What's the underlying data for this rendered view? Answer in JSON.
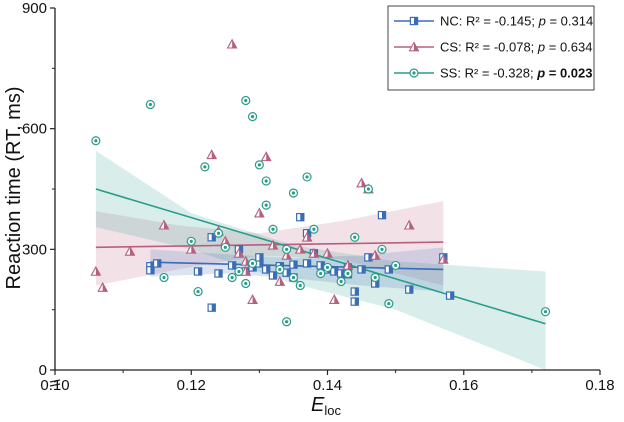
{
  "chart_data": {
    "type": "scatter",
    "xlabel_main": "E",
    "xlabel_sub": "loc",
    "ylabel": "Reaction time (RT, ms)",
    "xlim": [
      0.1,
      0.18
    ],
    "ylim": [
      0,
      900
    ],
    "x_ticks": [
      0.1,
      0.12,
      0.14,
      0.16,
      0.18
    ],
    "x_tick_labels": [
      "0.10",
      "0.12",
      "0.14",
      "0.16",
      "0.18"
    ],
    "y_ticks": [
      0,
      300,
      600,
      900
    ],
    "y_tick_labels": [
      "0",
      "300",
      "600",
      "900"
    ],
    "legend_position": "top-right",
    "series": [
      {
        "name": "NC",
        "legend": {
          "prefix": "NC: R² = -0.145; ",
          "p_label": "p",
          "p_eq": " = 0.314",
          "p_bold": false
        },
        "color": "#3b6cb7",
        "marker": "half-square",
        "fit": {
          "x": [
            0.114,
            0.157
          ],
          "y": [
            268,
            250
          ]
        },
        "ci": {
          "x": [
            0.114,
            0.125,
            0.135,
            0.145,
            0.157
          ],
          "upper": [
            300,
            288,
            278,
            285,
            305
          ],
          "lower": [
            232,
            240,
            228,
            210,
            195
          ]
        },
        "points": [
          [
            0.114,
            258
          ],
          [
            0.114,
            248
          ],
          [
            0.115,
            265
          ],
          [
            0.121,
            245
          ],
          [
            0.123,
            330
          ],
          [
            0.123,
            155
          ],
          [
            0.124,
            240
          ],
          [
            0.126,
            260
          ],
          [
            0.127,
            300
          ],
          [
            0.128,
            245
          ],
          [
            0.129,
            255
          ],
          [
            0.13,
            265
          ],
          [
            0.13,
            280
          ],
          [
            0.131,
            250
          ],
          [
            0.132,
            235
          ],
          [
            0.133,
            258
          ],
          [
            0.134,
            242
          ],
          [
            0.135,
            262
          ],
          [
            0.135,
            230
          ],
          [
            0.136,
            380
          ],
          [
            0.137,
            340
          ],
          [
            0.137,
            265
          ],
          [
            0.138,
            290
          ],
          [
            0.139,
            260
          ],
          [
            0.14,
            250
          ],
          [
            0.141,
            245
          ],
          [
            0.142,
            240
          ],
          [
            0.143,
            238
          ],
          [
            0.143,
            255
          ],
          [
            0.144,
            195
          ],
          [
            0.144,
            170
          ],
          [
            0.145,
            250
          ],
          [
            0.146,
            280
          ],
          [
            0.147,
            215
          ],
          [
            0.148,
            385
          ],
          [
            0.149,
            250
          ],
          [
            0.152,
            200
          ],
          [
            0.157,
            280
          ],
          [
            0.158,
            185
          ]
        ]
      },
      {
        "name": "CS",
        "legend": {
          "prefix": "CS: R² = -0.078; ",
          "p_label": "p",
          "p_eq": " = 0.634",
          "p_bold": false
        },
        "color": "#b5607f",
        "marker": "half-triangle",
        "fit": {
          "x": [
            0.106,
            0.157
          ],
          "y": [
            305,
            318
          ]
        },
        "ci": {
          "x": [
            0.106,
            0.118,
            0.13,
            0.142,
            0.157
          ],
          "upper": [
            395,
            360,
            340,
            370,
            420
          ],
          "lower": [
            210,
            250,
            285,
            275,
            210
          ]
        },
        "points": [
          [
            0.106,
            245
          ],
          [
            0.107,
            205
          ],
          [
            0.111,
            295
          ],
          [
            0.116,
            360
          ],
          [
            0.12,
            300
          ],
          [
            0.123,
            535
          ],
          [
            0.124,
            345
          ],
          [
            0.125,
            320
          ],
          [
            0.126,
            810
          ],
          [
            0.127,
            290
          ],
          [
            0.128,
            270
          ],
          [
            0.128,
            245
          ],
          [
            0.129,
            175
          ],
          [
            0.13,
            390
          ],
          [
            0.131,
            530
          ],
          [
            0.132,
            310
          ],
          [
            0.133,
            220
          ],
          [
            0.134,
            285
          ],
          [
            0.136,
            300
          ],
          [
            0.137,
            330
          ],
          [
            0.138,
            290
          ],
          [
            0.14,
            290
          ],
          [
            0.141,
            175
          ],
          [
            0.143,
            260
          ],
          [
            0.145,
            465
          ],
          [
            0.146,
            450
          ],
          [
            0.147,
            285
          ],
          [
            0.152,
            360
          ],
          [
            0.157,
            275
          ]
        ]
      },
      {
        "name": "SS",
        "legend": {
          "prefix": "SS: R² = -0.328; ",
          "p_label": "p",
          "p_eq": " = 0.023",
          "p_bold": true
        },
        "color": "#2a9c8a",
        "marker": "circle",
        "fit": {
          "x": [
            0.106,
            0.172
          ],
          "y": [
            450,
            115
          ]
        },
        "ci": {
          "x": [
            0.106,
            0.12,
            0.135,
            0.15,
            0.172
          ],
          "upper": [
            545,
            390,
            310,
            270,
            245
          ],
          "lower": [
            355,
            300,
            215,
            150,
            0
          ]
        },
        "points": [
          [
            0.106,
            570
          ],
          [
            0.114,
            660
          ],
          [
            0.116,
            230
          ],
          [
            0.12,
            320
          ],
          [
            0.121,
            195
          ],
          [
            0.122,
            505
          ],
          [
            0.124,
            340
          ],
          [
            0.125,
            305
          ],
          [
            0.126,
            230
          ],
          [
            0.127,
            245
          ],
          [
            0.128,
            670
          ],
          [
            0.128,
            215
          ],
          [
            0.129,
            630
          ],
          [
            0.129,
            265
          ],
          [
            0.13,
            510
          ],
          [
            0.131,
            470
          ],
          [
            0.131,
            410
          ],
          [
            0.132,
            350
          ],
          [
            0.133,
            250
          ],
          [
            0.134,
            120
          ],
          [
            0.134,
            300
          ],
          [
            0.135,
            440
          ],
          [
            0.135,
            230
          ],
          [
            0.136,
            210
          ],
          [
            0.137,
            480
          ],
          [
            0.138,
            350
          ],
          [
            0.139,
            240
          ],
          [
            0.14,
            255
          ],
          [
            0.142,
            220
          ],
          [
            0.143,
            240
          ],
          [
            0.144,
            330
          ],
          [
            0.146,
            450
          ],
          [
            0.147,
            230
          ],
          [
            0.148,
            300
          ],
          [
            0.149,
            165
          ],
          [
            0.15,
            260
          ],
          [
            0.172,
            145
          ]
        ]
      }
    ]
  }
}
